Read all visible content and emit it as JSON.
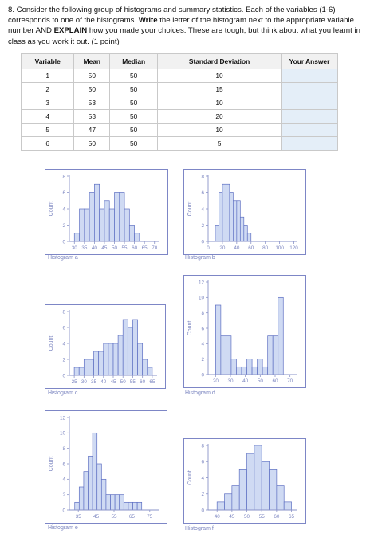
{
  "question": {
    "lead": "8. Consider the following group of histograms and summary statistics.  Each of the variables (1-6) corresponds to one of the histograms.  ",
    "write_bold": "Write",
    "middle": " the letter of the histogram next to the appropriate variable number AND ",
    "explain_bold": "EXPLAIN",
    "tail": " how you made your choices. These are tough, but think about what you learnt in class as you work it out. (1 point)"
  },
  "table": {
    "headers": [
      "Variable",
      "Mean",
      "Median",
      "Standard Deviation",
      "Your Answer"
    ],
    "rows": [
      [
        "1",
        "50",
        "50",
        "10",
        ""
      ],
      [
        "2",
        "50",
        "50",
        "15",
        ""
      ],
      [
        "3",
        "53",
        "50",
        "10",
        ""
      ],
      [
        "4",
        "53",
        "50",
        "20",
        ""
      ],
      [
        "5",
        "47",
        "50",
        "10",
        ""
      ],
      [
        "6",
        "50",
        "50",
        "5",
        ""
      ]
    ]
  },
  "chart_data": [
    {
      "type": "bar",
      "title": "Histogram a",
      "ylabel": "Count",
      "xticks": [
        "30",
        "35",
        "40",
        "45",
        "50",
        "55",
        "60",
        "65",
        "70"
      ],
      "yticks": [
        "0",
        "2",
        "4",
        "6",
        "8"
      ],
      "ylim": [
        0,
        8
      ],
      "xlim": [
        27.5,
        72.5
      ],
      "bins_start": 30,
      "bin_width": 2.5,
      "values": [
        1,
        4,
        4,
        6,
        7,
        4,
        5,
        4,
        6,
        6,
        4,
        2,
        1
      ]
    },
    {
      "type": "bar",
      "title": "Histogram b",
      "ylabel": "Count",
      "xticks": [
        "0",
        "20",
        "40",
        "60",
        "80",
        "100",
        "120"
      ],
      "yticks": [
        "0",
        "2",
        "4",
        "6",
        "8"
      ],
      "ylim": [
        0,
        8
      ],
      "xlim": [
        0,
        125
      ],
      "bins_start": 10,
      "bin_width": 5,
      "values": [
        2,
        6,
        7,
        7,
        6,
        5,
        5,
        3,
        2,
        1
      ]
    },
    {
      "type": "bar",
      "title": "Histogram c",
      "ylabel": "Count",
      "xticks": [
        "25",
        "30",
        "35",
        "40",
        "45",
        "50",
        "55",
        "60",
        "65"
      ],
      "yticks": [
        "0",
        "2",
        "4",
        "6",
        "8"
      ],
      "ylim": [
        0,
        8
      ],
      "xlim": [
        22.5,
        67.5
      ],
      "bins_start": 25,
      "bin_width": 2.5,
      "values": [
        1,
        1,
        2,
        2,
        3,
        3,
        4,
        4,
        4,
        5,
        7,
        6,
        7,
        4,
        2,
        1
      ]
    },
    {
      "type": "bar",
      "title": "Histogram d",
      "ylabel": "Count",
      "xticks": [
        "20",
        "30",
        "40",
        "50",
        "60",
        "70"
      ],
      "yticks": [
        "0",
        "2",
        "4",
        "6",
        "8",
        "10",
        "12"
      ],
      "ylim": [
        0,
        12
      ],
      "xlim": [
        15,
        75
      ],
      "bins_start": 20,
      "bin_width": 3.5,
      "values": [
        9,
        5,
        5,
        2,
        1,
        1,
        2,
        1,
        2,
        1,
        5,
        5,
        10
      ]
    },
    {
      "type": "bar",
      "title": "Histogram e",
      "ylabel": "Count",
      "xticks": [
        "35",
        "45",
        "55",
        "65",
        "75"
      ],
      "yticks": [
        "0",
        "2",
        "4",
        "6",
        "8",
        "10",
        "12"
      ],
      "ylim": [
        0,
        12
      ],
      "xlim": [
        30,
        80
      ],
      "bins_start": 33,
      "bin_width": 2.5,
      "values": [
        1,
        3,
        5,
        7,
        10,
        6,
        4,
        2,
        2,
        2,
        2,
        1,
        1,
        1,
        1
      ]
    },
    {
      "type": "bar",
      "title": "Histogram f",
      "ylabel": "Count",
      "xticks": [
        "40",
        "45",
        "50",
        "55",
        "60",
        "65"
      ],
      "yticks": [
        "0",
        "2",
        "4",
        "6",
        "8"
      ],
      "ylim": [
        0,
        8
      ],
      "xlim": [
        37,
        67
      ],
      "bins_start": 40,
      "bin_width": 2.5,
      "values": [
        1,
        2,
        3,
        5,
        7,
        8,
        6,
        5,
        3,
        1
      ]
    }
  ],
  "colors": {
    "frame": "#7d86c6",
    "bar_fill": "#cfdaf3",
    "bar_stroke": "#5d6fc2",
    "axis": "#8a93c8",
    "label": "#7b85c0"
  }
}
